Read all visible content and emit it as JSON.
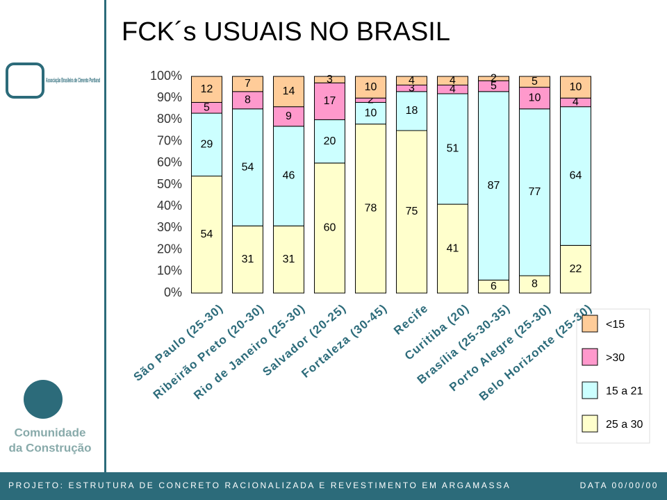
{
  "chart_data": {
    "type": "stacked_bar",
    "title": "FCK´s USUAIS NO BRASIL",
    "categories": [
      "São Paulo (25-30)",
      "Ribeirão Preto (20-30)",
      "Rio de Janeiro (25-30)",
      "Salvador (20-25)",
      "Fortaleza (30-45)",
      "Recife",
      "Curitiba (20)",
      "Brasília (25-30-35)",
      "Porto Alegre (25-30)",
      "Belo Horizonte (25-30)"
    ],
    "series": [
      {
        "name": "25 a 30",
        "color": "#ffffcc",
        "values": [
          54,
          31,
          31,
          60,
          78,
          75,
          41,
          6,
          8,
          22
        ]
      },
      {
        "name": "15 a 21",
        "color": "#ccffff",
        "values": [
          29,
          54,
          46,
          20,
          10,
          18,
          51,
          87,
          77,
          64
        ]
      },
      {
        "name": ">30",
        "color": "#ff99cc",
        "values": [
          5,
          8,
          9,
          17,
          2,
          3,
          4,
          5,
          10,
          4
        ]
      },
      {
        "name": "<15",
        "color": "#ffcc99",
        "values": [
          12,
          7,
          14,
          3,
          10,
          4,
          4,
          2,
          5,
          10
        ]
      }
    ],
    "ylim": [
      0,
      100
    ],
    "yticks": [
      {
        "value": 0,
        "label": "0%"
      },
      {
        "value": 10,
        "label": "10%"
      },
      {
        "value": 20,
        "label": "20%"
      },
      {
        "value": 30,
        "label": "30%"
      },
      {
        "value": 40,
        "label": "40%"
      },
      {
        "value": 50,
        "label": "50%"
      },
      {
        "value": 60,
        "label": "60%"
      },
      {
        "value": 70,
        "label": "70%"
      },
      {
        "value": 80,
        "label": "80%"
      },
      {
        "value": 90,
        "label": "90%"
      },
      {
        "value": 100,
        "label": "100%"
      }
    ]
  },
  "logos": {
    "abcp": "Associação Brasileira de Cimento Portland",
    "comunidade_1": "Comunidade",
    "comunidade_2": "da Construção"
  },
  "footer": {
    "project": "PROJETO: ESTRUTURA DE CONCRETO RACIONALIZADA E REVESTIMENTO EM ARGAMASSA",
    "date": "DATA 00/00/00"
  }
}
